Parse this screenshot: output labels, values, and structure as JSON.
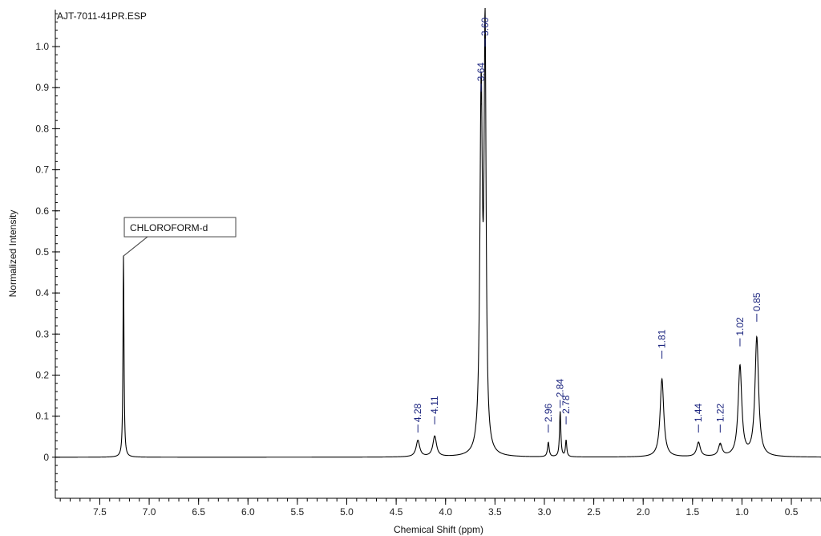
{
  "chart_data": {
    "type": "line",
    "title": "AJT-7011-41PR.ESP",
    "xlabel": "Chemical Shift (ppm)",
    "ylabel": "Normalized Intensity",
    "xlim": [
      7.95,
      0.2
    ],
    "ylim": [
      -0.1,
      1.09
    ],
    "x_ticks": [
      7.5,
      7.0,
      6.5,
      6.0,
      5.5,
      5.0,
      4.5,
      4.0,
      3.5,
      3.0,
      2.5,
      2.0,
      1.5,
      1.0,
      0.5
    ],
    "y_ticks": [
      0,
      0.1,
      0.2,
      0.3,
      0.4,
      0.5,
      0.6,
      0.7,
      0.8,
      0.9,
      1.0
    ],
    "grid": false,
    "colors": {
      "spectrum": "#000000",
      "peak_labels": "#1a237e"
    },
    "peaks": [
      {
        "x": 7.26,
        "h": 0.49
      },
      {
        "x": 4.28,
        "h": 0.04
      },
      {
        "x": 4.11,
        "h": 0.05
      },
      {
        "x": 3.64,
        "h": 0.86
      },
      {
        "x": 3.6,
        "h": 0.99
      },
      {
        "x": 2.96,
        "h": 0.035
      },
      {
        "x": 2.84,
        "h": 0.11
      },
      {
        "x": 2.78,
        "h": 0.04
      },
      {
        "x": 1.81,
        "h": 0.19
      },
      {
        "x": 1.44,
        "h": 0.035
      },
      {
        "x": 1.22,
        "h": 0.03
      },
      {
        "x": 1.02,
        "h": 0.22
      },
      {
        "x": 0.85,
        "h": 0.29
      }
    ],
    "peak_labels": [
      {
        "text": "4.28",
        "x": 4.28
      },
      {
        "text": "4.11",
        "x": 4.11
      },
      {
        "text": "3.64",
        "x": 3.64
      },
      {
        "text": "3.60",
        "x": 3.6
      },
      {
        "text": "2.96",
        "x": 2.96
      },
      {
        "text": "2.84",
        "x": 2.84
      },
      {
        "text": "2.78",
        "x": 2.78
      },
      {
        "text": "1.81",
        "x": 1.81
      },
      {
        "text": "1.44",
        "x": 1.44
      },
      {
        "text": "1.22",
        "x": 1.22
      },
      {
        "text": "1.02",
        "x": 1.02
      },
      {
        "text": "0.85",
        "x": 0.85
      }
    ],
    "annotations": [
      {
        "text": "CHLOROFORM-d",
        "x": 7.26,
        "y": 0.49
      }
    ]
  }
}
